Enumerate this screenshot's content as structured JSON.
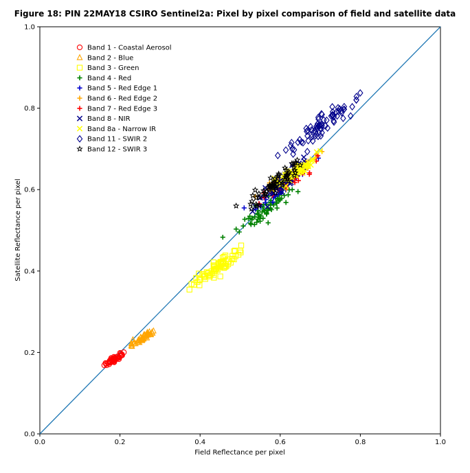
{
  "chart_data": {
    "type": "scatter",
    "title": "Figure 18: PIN 22MAY18 CSIRO Sentinel2a: Pixel by pixel comparison of field and satellite data",
    "xlabel": "Field Reflectance per pixel",
    "ylabel": "Satellite Reflectance per pixel",
    "xlim": [
      0.0,
      1.0
    ],
    "ylim": [
      0.0,
      1.0
    ],
    "xticks": [
      "0.0",
      "0.2",
      "0.4",
      "0.6",
      "0.8",
      "1.0"
    ],
    "yticks": [
      "0.0",
      "0.2",
      "0.4",
      "0.6",
      "0.8",
      "1.0"
    ],
    "grid": false,
    "legend_placement": "upper-left",
    "reference_line": {
      "type": "1:1",
      "color": "#1f77b4"
    },
    "series": [
      {
        "name": "Band 1 - Coastal Aerosol",
        "marker": "circle",
        "color": "#ff0000",
        "cx": 0.185,
        "cy": 0.183,
        "sx": 0.012,
        "sy": 0.008,
        "n": 40,
        "x": [
          0.165,
          0.175,
          0.185,
          0.195,
          0.205,
          0.19
        ],
        "y": [
          0.172,
          0.178,
          0.185,
          0.19,
          0.195,
          0.183
        ]
      },
      {
        "name": "Band 2 - Blue",
        "marker": "triangle",
        "color": "#ffa500",
        "cx": 0.255,
        "cy": 0.235,
        "sx": 0.016,
        "sy": 0.01,
        "n": 40,
        "x": [
          0.23,
          0.245,
          0.255,
          0.265,
          0.28
        ],
        "y": [
          0.215,
          0.228,
          0.235,
          0.242,
          0.25
        ]
      },
      {
        "name": "Band 3 - Green",
        "marker": "square",
        "color": "#ffff00",
        "cx": 0.445,
        "cy": 0.41,
        "sx": 0.03,
        "sy": 0.02,
        "n": 70,
        "x": [
          0.39,
          0.42,
          0.45,
          0.48,
          0.5
        ],
        "y": [
          0.383,
          0.395,
          0.41,
          0.43,
          0.45
        ]
      },
      {
        "name": "Band 4 - Red",
        "marker": "plus",
        "color": "#008000",
        "cx": 0.57,
        "cy": 0.555,
        "sx": 0.03,
        "sy": 0.025,
        "n": 60,
        "x": [
          0.49,
          0.53,
          0.57,
          0.6,
          0.63
        ],
        "y": [
          0.503,
          0.53,
          0.555,
          0.575,
          0.6
        ]
      },
      {
        "name": "Band 5 - Red Edge 1",
        "marker": "plus",
        "color": "#0000cd",
        "cx": 0.6,
        "cy": 0.6,
        "sx": 0.03,
        "sy": 0.025,
        "n": 40,
        "x": [
          0.51,
          0.56,
          0.6,
          0.64,
          0.67
        ],
        "y": [
          0.555,
          0.58,
          0.6,
          0.63,
          0.665
        ]
      },
      {
        "name": "Band 6 - Red Edge 2",
        "marker": "plus",
        "color": "#ffa500",
        "cx": 0.625,
        "cy": 0.635,
        "sx": 0.03,
        "sy": 0.02,
        "n": 50,
        "x": [
          0.57,
          0.6,
          0.63,
          0.66,
          0.69
        ],
        "y": [
          0.6,
          0.62,
          0.64,
          0.66,
          0.68
        ]
      },
      {
        "name": "Band 7 - Red Edge 3",
        "marker": "plus",
        "color": "#ff0000",
        "cx": 0.625,
        "cy": 0.625,
        "sx": 0.03,
        "sy": 0.022,
        "n": 50,
        "x": [
          0.56,
          0.6,
          0.63,
          0.66,
          0.69
        ],
        "y": [
          0.58,
          0.61,
          0.63,
          0.65,
          0.67
        ]
      },
      {
        "name": "Band 8 - NIR",
        "marker": "x",
        "color": "#00008b",
        "cx": 0.6,
        "cy": 0.61,
        "sx": 0.03,
        "sy": 0.025,
        "n": 50,
        "x": [
          0.55,
          0.58,
          0.61,
          0.64,
          0.66
        ],
        "y": [
          0.58,
          0.6,
          0.62,
          0.64,
          0.67
        ]
      },
      {
        "name": "Band 8a - Narrow IR",
        "marker": "x",
        "color": "#ffff00",
        "cx": 0.64,
        "cy": 0.645,
        "sx": 0.03,
        "sy": 0.02,
        "n": 60,
        "x": [
          0.58,
          0.62,
          0.65,
          0.68,
          0.7
        ],
        "y": [
          0.6,
          0.63,
          0.65,
          0.675,
          0.695
        ]
      },
      {
        "name": "Band 11 - SWIR 2",
        "marker": "diamond",
        "color": "#00008b",
        "cx": 0.705,
        "cy": 0.755,
        "sx": 0.04,
        "sy": 0.03,
        "n": 70,
        "x": [
          0.63,
          0.67,
          0.7,
          0.74,
          0.79
        ],
        "y": [
          0.7,
          0.72,
          0.75,
          0.79,
          0.82
        ]
      },
      {
        "name": "Band 12 - SWIR 3",
        "marker": "star",
        "color": "#000000",
        "cx": 0.585,
        "cy": 0.61,
        "sx": 0.03,
        "sy": 0.025,
        "n": 60,
        "x": [
          0.49,
          0.54,
          0.58,
          0.62,
          0.65
        ],
        "y": [
          0.56,
          0.58,
          0.61,
          0.64,
          0.66
        ]
      }
    ]
  }
}
